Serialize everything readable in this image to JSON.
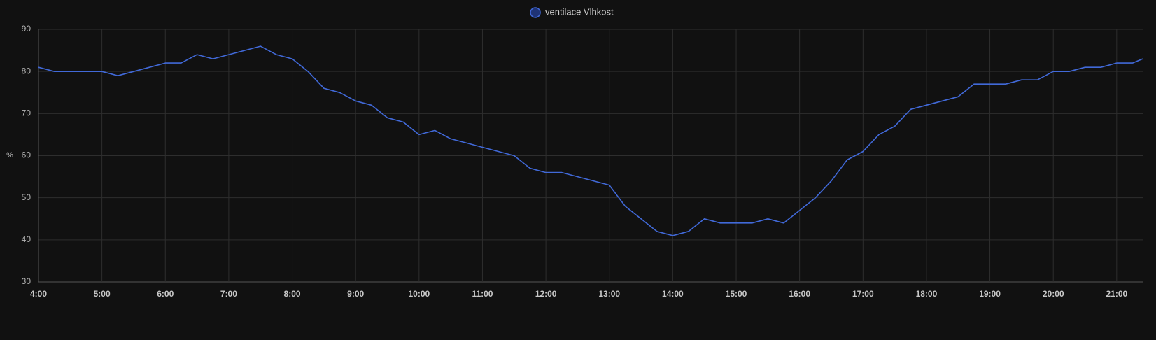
{
  "chart_data": {
    "type": "line",
    "y_label": "%",
    "x": [
      4,
      4.25,
      4.5,
      4.75,
      5,
      5.25,
      5.5,
      5.75,
      6,
      6.25,
      6.5,
      6.75,
      7,
      7.25,
      7.5,
      7.75,
      8,
      8.25,
      8.5,
      8.75,
      9,
      9.25,
      9.5,
      9.75,
      10,
      10.25,
      10.5,
      10.75,
      11,
      11.25,
      11.5,
      11.75,
      12,
      12.25,
      12.5,
      12.75,
      13,
      13.25,
      13.5,
      13.75,
      14,
      14.25,
      14.5,
      14.75,
      15,
      15.25,
      15.5,
      15.75,
      16,
      16.25,
      16.5,
      16.75,
      17,
      17.25,
      17.5,
      17.75,
      18,
      18.25,
      18.5,
      18.75,
      19,
      19.25,
      19.5,
      19.75,
      20,
      20.25,
      20.5,
      20.75,
      21,
      21.25,
      21.41
    ],
    "series": [
      {
        "name": "ventilace Vlhkost",
        "color": "#4169d8",
        "values": [
          81,
          80,
          80,
          80,
          80,
          79,
          80,
          81,
          82,
          82,
          84,
          83,
          84,
          85,
          86,
          84,
          83,
          80,
          76,
          75,
          73,
          72,
          69,
          68,
          65,
          66,
          64,
          63,
          62,
          61,
          60,
          57,
          56,
          56,
          55,
          54,
          53,
          48,
          45,
          42,
          41,
          42,
          45,
          44,
          44,
          44,
          45,
          44,
          47,
          50,
          54,
          59,
          61,
          65,
          67,
          71,
          72,
          73,
          74,
          77,
          77,
          77,
          78,
          78,
          80,
          80,
          81,
          81,
          82,
          82,
          83
        ]
      }
    ],
    "xlim": [
      4,
      21.41
    ],
    "xticks": [
      {
        "value": 4,
        "label": "4:00"
      },
      {
        "value": 5,
        "label": "5:00"
      },
      {
        "value": 6,
        "label": "6:00"
      },
      {
        "value": 7,
        "label": "7:00"
      },
      {
        "value": 8,
        "label": "8:00"
      },
      {
        "value": 9,
        "label": "9:00"
      },
      {
        "value": 10,
        "label": "10:00"
      },
      {
        "value": 11,
        "label": "11:00"
      },
      {
        "value": 12,
        "label": "12:00"
      },
      {
        "value": 13,
        "label": "13:00"
      },
      {
        "value": 14,
        "label": "14:00"
      },
      {
        "value": 15,
        "label": "15:00"
      },
      {
        "value": 16,
        "label": "16:00"
      },
      {
        "value": 17,
        "label": "17:00"
      },
      {
        "value": 18,
        "label": "18:00"
      },
      {
        "value": 19,
        "label": "19:00"
      },
      {
        "value": 20,
        "label": "20:00"
      },
      {
        "value": 21,
        "label": "21:00"
      }
    ],
    "ylim": [
      30,
      90
    ],
    "yticks": [
      30,
      40,
      50,
      60,
      70,
      80,
      90
    ],
    "grid": true
  }
}
